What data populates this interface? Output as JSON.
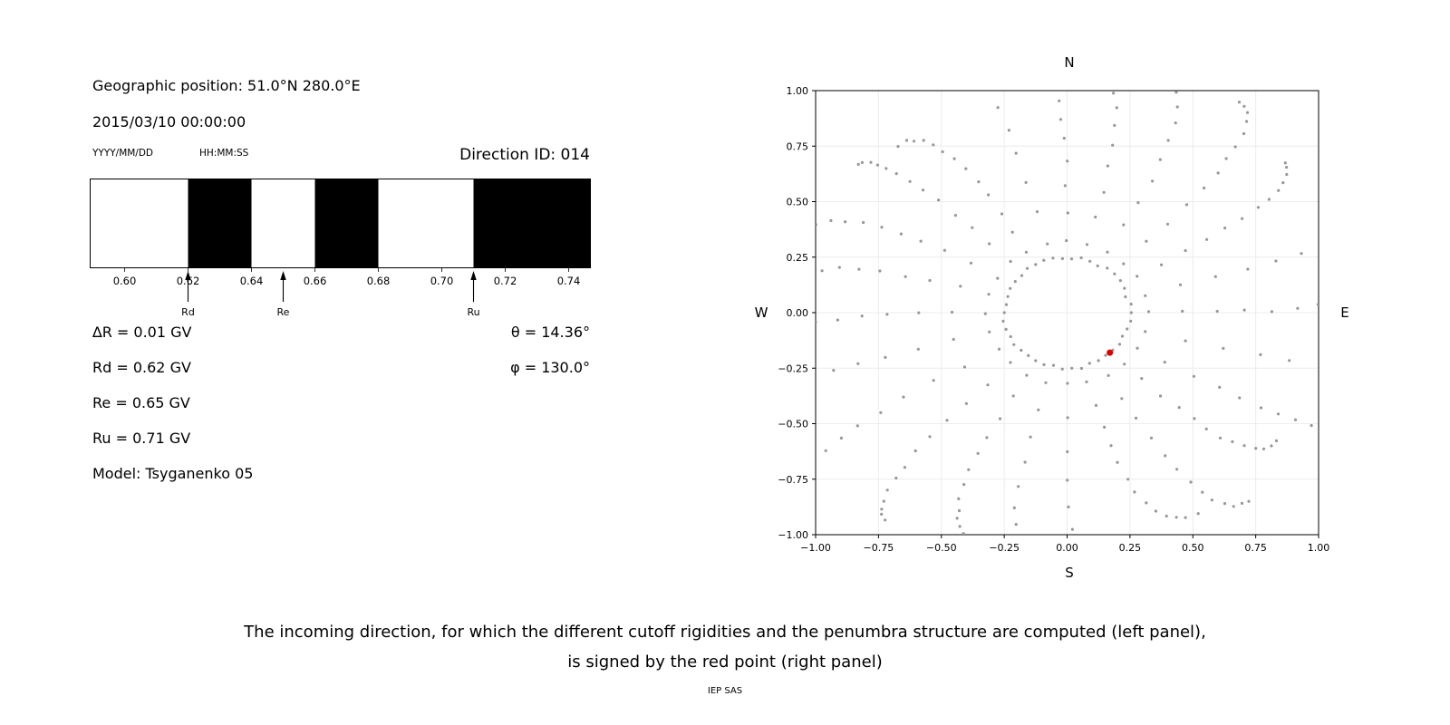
{
  "header": {
    "geo_position": "Geographic position: 51.0°N 280.0°E",
    "datetime": "2015/03/10 00:00:00",
    "date_format_label": "YYYY/MM/DD",
    "time_format_label": "HH:MM:SS",
    "direction_id": "Direction ID: 014"
  },
  "left_panel": {
    "delta_r": "∆R = 0.01 GV",
    "rd": "Rd = 0.62 GV",
    "re": "Re = 0.65 GV",
    "ru": "Ru = 0.71 GV",
    "model": "Model: Tsyganenko 05",
    "theta": "θ = 14.36°",
    "phi": "φ = 130.0°"
  },
  "caption": {
    "line1": "The incoming direction, for which the different cutoff rigidities and the penumbra structure are computed (left panel),",
    "line2": "is signed by the red point (right panel)",
    "credit": "IEP SAS"
  },
  "chart_data": [
    {
      "type": "bar",
      "description": "Penumbra structure: black bands over rigidity axis (GV)",
      "x_range": [
        0.589,
        0.747
      ],
      "tick_values": [
        0.6,
        0.62,
        0.64,
        0.66,
        0.68,
        0.7,
        0.72,
        0.74
      ],
      "tick_labels": [
        "0.60",
        "0.62",
        "0.64",
        "0.66",
        "0.68",
        "0.70",
        "0.72",
        "0.74"
      ],
      "bands": [
        [
          0.62,
          0.64
        ],
        [
          0.66,
          0.68
        ],
        [
          0.71,
          0.747
        ]
      ],
      "band_color": "#000000",
      "background": "#ffffff",
      "markers": [
        {
          "label": "Rd",
          "value": 0.62
        },
        {
          "label": "Re",
          "value": 0.65
        },
        {
          "label": "Ru",
          "value": 0.71
        }
      ]
    },
    {
      "type": "scatter",
      "description": "Incoming-direction sky map; gray dots form inner ring plus radial spokes, red point marks selected direction",
      "xlim": [
        -1,
        1
      ],
      "ylim": [
        -1,
        1
      ],
      "x_tick_values": [
        -1.0,
        -0.75,
        -0.5,
        -0.25,
        0.0,
        0.25,
        0.5,
        0.75,
        1.0
      ],
      "x_tick_labels": [
        "−1.00",
        "−0.75",
        "−0.50",
        "−0.25",
        "0.00",
        "0.25",
        "0.50",
        "0.75",
        "1.00"
      ],
      "y_tick_values": [
        1.0,
        0.75,
        0.5,
        0.25,
        0.0,
        -0.25,
        -0.5,
        -0.75,
        -1.0
      ],
      "y_tick_labels": [
        "1.00",
        "0.75",
        "0.50",
        "0.25",
        "0.00",
        "−0.25",
        "−0.50",
        "−0.75",
        "−1.00"
      ],
      "compass": {
        "top": "N",
        "bottom": "S",
        "left": "W",
        "right": "E"
      },
      "grid": true,
      "grid_color": "#ececec",
      "dot_color": "#979797",
      "dot_radius": 1.6,
      "pattern": {
        "inner_ring": {
          "radius": 0.25,
          "count": 42,
          "jitter": 0.008
        },
        "spokes": {
          "count": 24,
          "start_angle_deg": 0,
          "step_deg": 15,
          "r_start": 0.32,
          "r_end_min": 0.95,
          "r_end_max": 1.45,
          "points_per_spoke": 13,
          "twist_deg": 10
        }
      },
      "red_point": {
        "x": 0.17,
        "y": -0.18,
        "color": "#dd0000",
        "radius": 3.5
      }
    }
  ]
}
